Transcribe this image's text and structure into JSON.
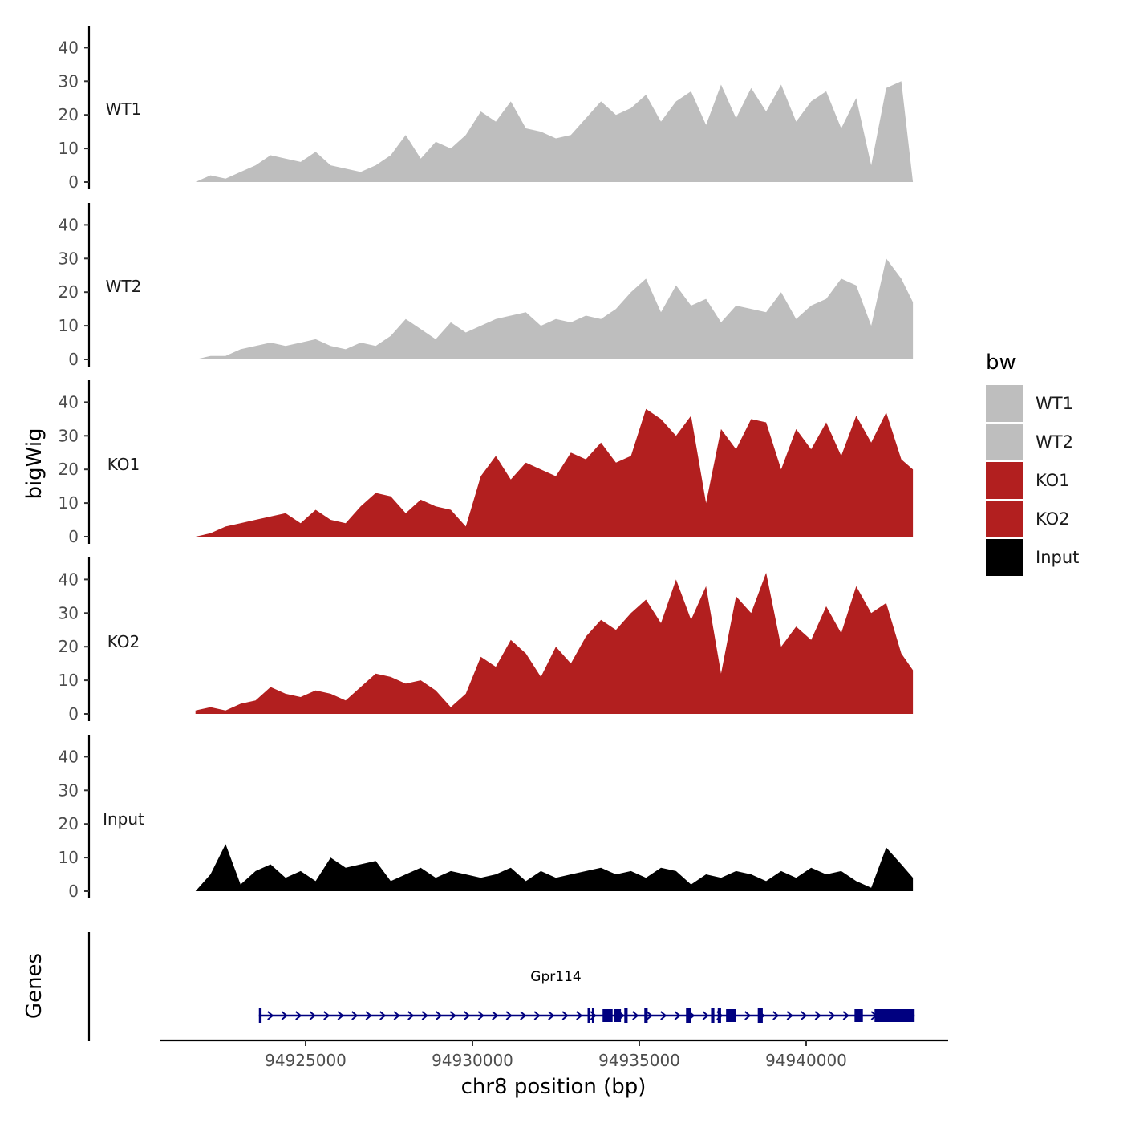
{
  "chart_data": {
    "type": "area",
    "ylabel": "bigWig",
    "xlabel": "chr8 position (bp)",
    "chromosome": "chr8",
    "ylim": [
      0,
      45
    ],
    "yticks": [
      0,
      10,
      20,
      30,
      40
    ],
    "xlim": [
      94921000,
      94945000
    ],
    "xticks": [
      94925000,
      94930000,
      94935000,
      94940000
    ],
    "xtick_labels": [
      "94925000",
      "94930000",
      "94935000",
      "94940000"
    ],
    "data_range": [
      94921700,
      94943200
    ],
    "tracks": [
      {
        "name": "WT1",
        "group": "WT",
        "color": "#bebebe",
        "x": [
          94921700,
          94922150,
          94922600,
          94923050,
          94923500,
          94923950,
          94924400,
          94924850,
          94925300,
          94925750,
          94926200,
          94926650,
          94927100,
          94927550,
          94928000,
          94928450,
          94928900,
          94929350,
          94929800,
          94930250,
          94930700,
          94931150,
          94931600,
          94932050,
          94932500,
          94932950,
          94933400,
          94933850,
          94934300,
          94934750,
          94935200,
          94935650,
          94936100,
          94936550,
          94937000,
          94937450,
          94937900,
          94938350,
          94938800,
          94939250,
          94939700,
          94940150,
          94940600,
          94941050,
          94941500,
          94941950,
          94942400,
          94942850,
          94943200
        ],
        "values": [
          0,
          2,
          1,
          3,
          5,
          8,
          7,
          6,
          9,
          5,
          4,
          3,
          5,
          8,
          14,
          7,
          12,
          10,
          14,
          21,
          18,
          24,
          16,
          15,
          13,
          14,
          19,
          24,
          20,
          22,
          26,
          18,
          24,
          27,
          17,
          29,
          19,
          28,
          21,
          29,
          18,
          24,
          27,
          16,
          25,
          5,
          28,
          30,
          0
        ]
      },
      {
        "name": "WT2",
        "group": "WT",
        "color": "#bebebe",
        "x": [
          94921700,
          94922150,
          94922600,
          94923050,
          94923500,
          94923950,
          94924400,
          94924850,
          94925300,
          94925750,
          94926200,
          94926650,
          94927100,
          94927550,
          94928000,
          94928450,
          94928900,
          94929350,
          94929800,
          94930250,
          94930700,
          94931150,
          94931600,
          94932050,
          94932500,
          94932950,
          94933400,
          94933850,
          94934300,
          94934750,
          94935200,
          94935650,
          94936100,
          94936550,
          94937000,
          94937450,
          94937900,
          94938350,
          94938800,
          94939250,
          94939700,
          94940150,
          94940600,
          94941050,
          94941500,
          94941950,
          94942400,
          94942850,
          94943200
        ],
        "values": [
          0,
          1,
          1,
          3,
          4,
          5,
          4,
          5,
          6,
          4,
          3,
          5,
          4,
          7,
          12,
          9,
          6,
          11,
          8,
          10,
          12,
          13,
          14,
          10,
          12,
          11,
          13,
          12,
          15,
          20,
          24,
          14,
          22,
          16,
          18,
          11,
          16,
          15,
          14,
          20,
          12,
          16,
          18,
          24,
          22,
          10,
          30,
          24,
          17
        ]
      },
      {
        "name": "KO1",
        "group": "KO",
        "color": "#b21f1f",
        "x": [
          94921700,
          94922150,
          94922600,
          94923050,
          94923500,
          94923950,
          94924400,
          94924850,
          94925300,
          94925750,
          94926200,
          94926650,
          94927100,
          94927550,
          94928000,
          94928450,
          94928900,
          94929350,
          94929800,
          94930250,
          94930700,
          94931150,
          94931600,
          94932050,
          94932500,
          94932950,
          94933400,
          94933850,
          94934300,
          94934750,
          94935200,
          94935650,
          94936100,
          94936550,
          94937000,
          94937450,
          94937900,
          94938350,
          94938800,
          94939250,
          94939700,
          94940150,
          94940600,
          94941050,
          94941500,
          94941950,
          94942400,
          94942850,
          94943200
        ],
        "values": [
          0,
          1,
          3,
          4,
          5,
          6,
          7,
          4,
          8,
          5,
          4,
          9,
          13,
          12,
          7,
          11,
          9,
          8,
          3,
          18,
          24,
          17,
          22,
          20,
          18,
          25,
          23,
          28,
          22,
          24,
          38,
          35,
          30,
          36,
          10,
          32,
          26,
          35,
          34,
          20,
          32,
          26,
          34,
          24,
          36,
          28,
          37,
          23,
          20
        ]
      },
      {
        "name": "KO2",
        "group": "KO",
        "color": "#b21f1f",
        "x": [
          94921700,
          94922150,
          94922600,
          94923050,
          94923500,
          94923950,
          94924400,
          94924850,
          94925300,
          94925750,
          94926200,
          94926650,
          94927100,
          94927550,
          94928000,
          94928450,
          94928900,
          94929350,
          94929800,
          94930250,
          94930700,
          94931150,
          94931600,
          94932050,
          94932500,
          94932950,
          94933400,
          94933850,
          94934300,
          94934750,
          94935200,
          94935650,
          94936100,
          94936550,
          94937000,
          94937450,
          94937900,
          94938350,
          94938800,
          94939250,
          94939700,
          94940150,
          94940600,
          94941050,
          94941500,
          94941950,
          94942400,
          94942850,
          94943200
        ],
        "values": [
          1,
          2,
          1,
          3,
          4,
          8,
          6,
          5,
          7,
          6,
          4,
          8,
          12,
          11,
          9,
          10,
          7,
          2,
          6,
          17,
          14,
          22,
          18,
          11,
          20,
          15,
          23,
          28,
          25,
          30,
          34,
          27,
          40,
          28,
          38,
          12,
          35,
          30,
          42,
          20,
          26,
          22,
          32,
          24,
          38,
          30,
          33,
          18,
          13
        ]
      },
      {
        "name": "Input",
        "group": "Input",
        "color": "#000000",
        "x": [
          94921700,
          94922150,
          94922600,
          94923050,
          94923500,
          94923950,
          94924400,
          94924850,
          94925300,
          94925750,
          94926200,
          94926650,
          94927100,
          94927550,
          94928000,
          94928450,
          94928900,
          94929350,
          94929800,
          94930250,
          94930700,
          94931150,
          94931600,
          94932050,
          94932500,
          94932950,
          94933400,
          94933850,
          94934300,
          94934750,
          94935200,
          94935650,
          94936100,
          94936550,
          94937000,
          94937450,
          94937900,
          94938350,
          94938800,
          94939250,
          94939700,
          94940150,
          94940600,
          94941050,
          94941500,
          94941950,
          94942400,
          94942850,
          94943200
        ],
        "values": [
          0,
          5,
          14,
          2,
          6,
          8,
          4,
          6,
          3,
          10,
          7,
          8,
          9,
          3,
          5,
          7,
          4,
          6,
          5,
          4,
          5,
          7,
          3,
          6,
          4,
          5,
          6,
          7,
          5,
          6,
          4,
          7,
          6,
          2,
          5,
          4,
          6,
          5,
          3,
          6,
          4,
          7,
          5,
          6,
          3,
          1,
          13,
          8,
          4
        ]
      }
    ],
    "legend": {
      "title": "bw",
      "position": "right",
      "entries": [
        {
          "label": "WT1",
          "color": "#bebebe"
        },
        {
          "label": "WT2",
          "color": "#bebebe"
        },
        {
          "label": "KO1",
          "color": "#b21f1f"
        },
        {
          "label": "KO2",
          "color": "#b21f1f"
        },
        {
          "label": "Input",
          "color": "#000000"
        }
      ]
    },
    "genes_panel": {
      "ylabel": "Genes",
      "gene_color": "#000080",
      "genes": [
        {
          "name": "Gpr114",
          "start": 94923600,
          "end": 94943250,
          "strand": "+",
          "exons": [
            [
              94923600,
              94923680
            ],
            [
              94933450,
              94933520
            ],
            [
              94933580,
              94933620
            ],
            [
              94933900,
              94934200
            ],
            [
              94934250,
              94934450
            ],
            [
              94934550,
              94934650
            ],
            [
              94935150,
              94935250
            ],
            [
              94936400,
              94936550
            ],
            [
              94937150,
              94937250
            ],
            [
              94937350,
              94937450
            ],
            [
              94937600,
              94937900
            ],
            [
              94938550,
              94938700
            ],
            [
              94941450,
              94941700
            ],
            [
              94942050,
              94943250
            ]
          ]
        }
      ]
    }
  }
}
